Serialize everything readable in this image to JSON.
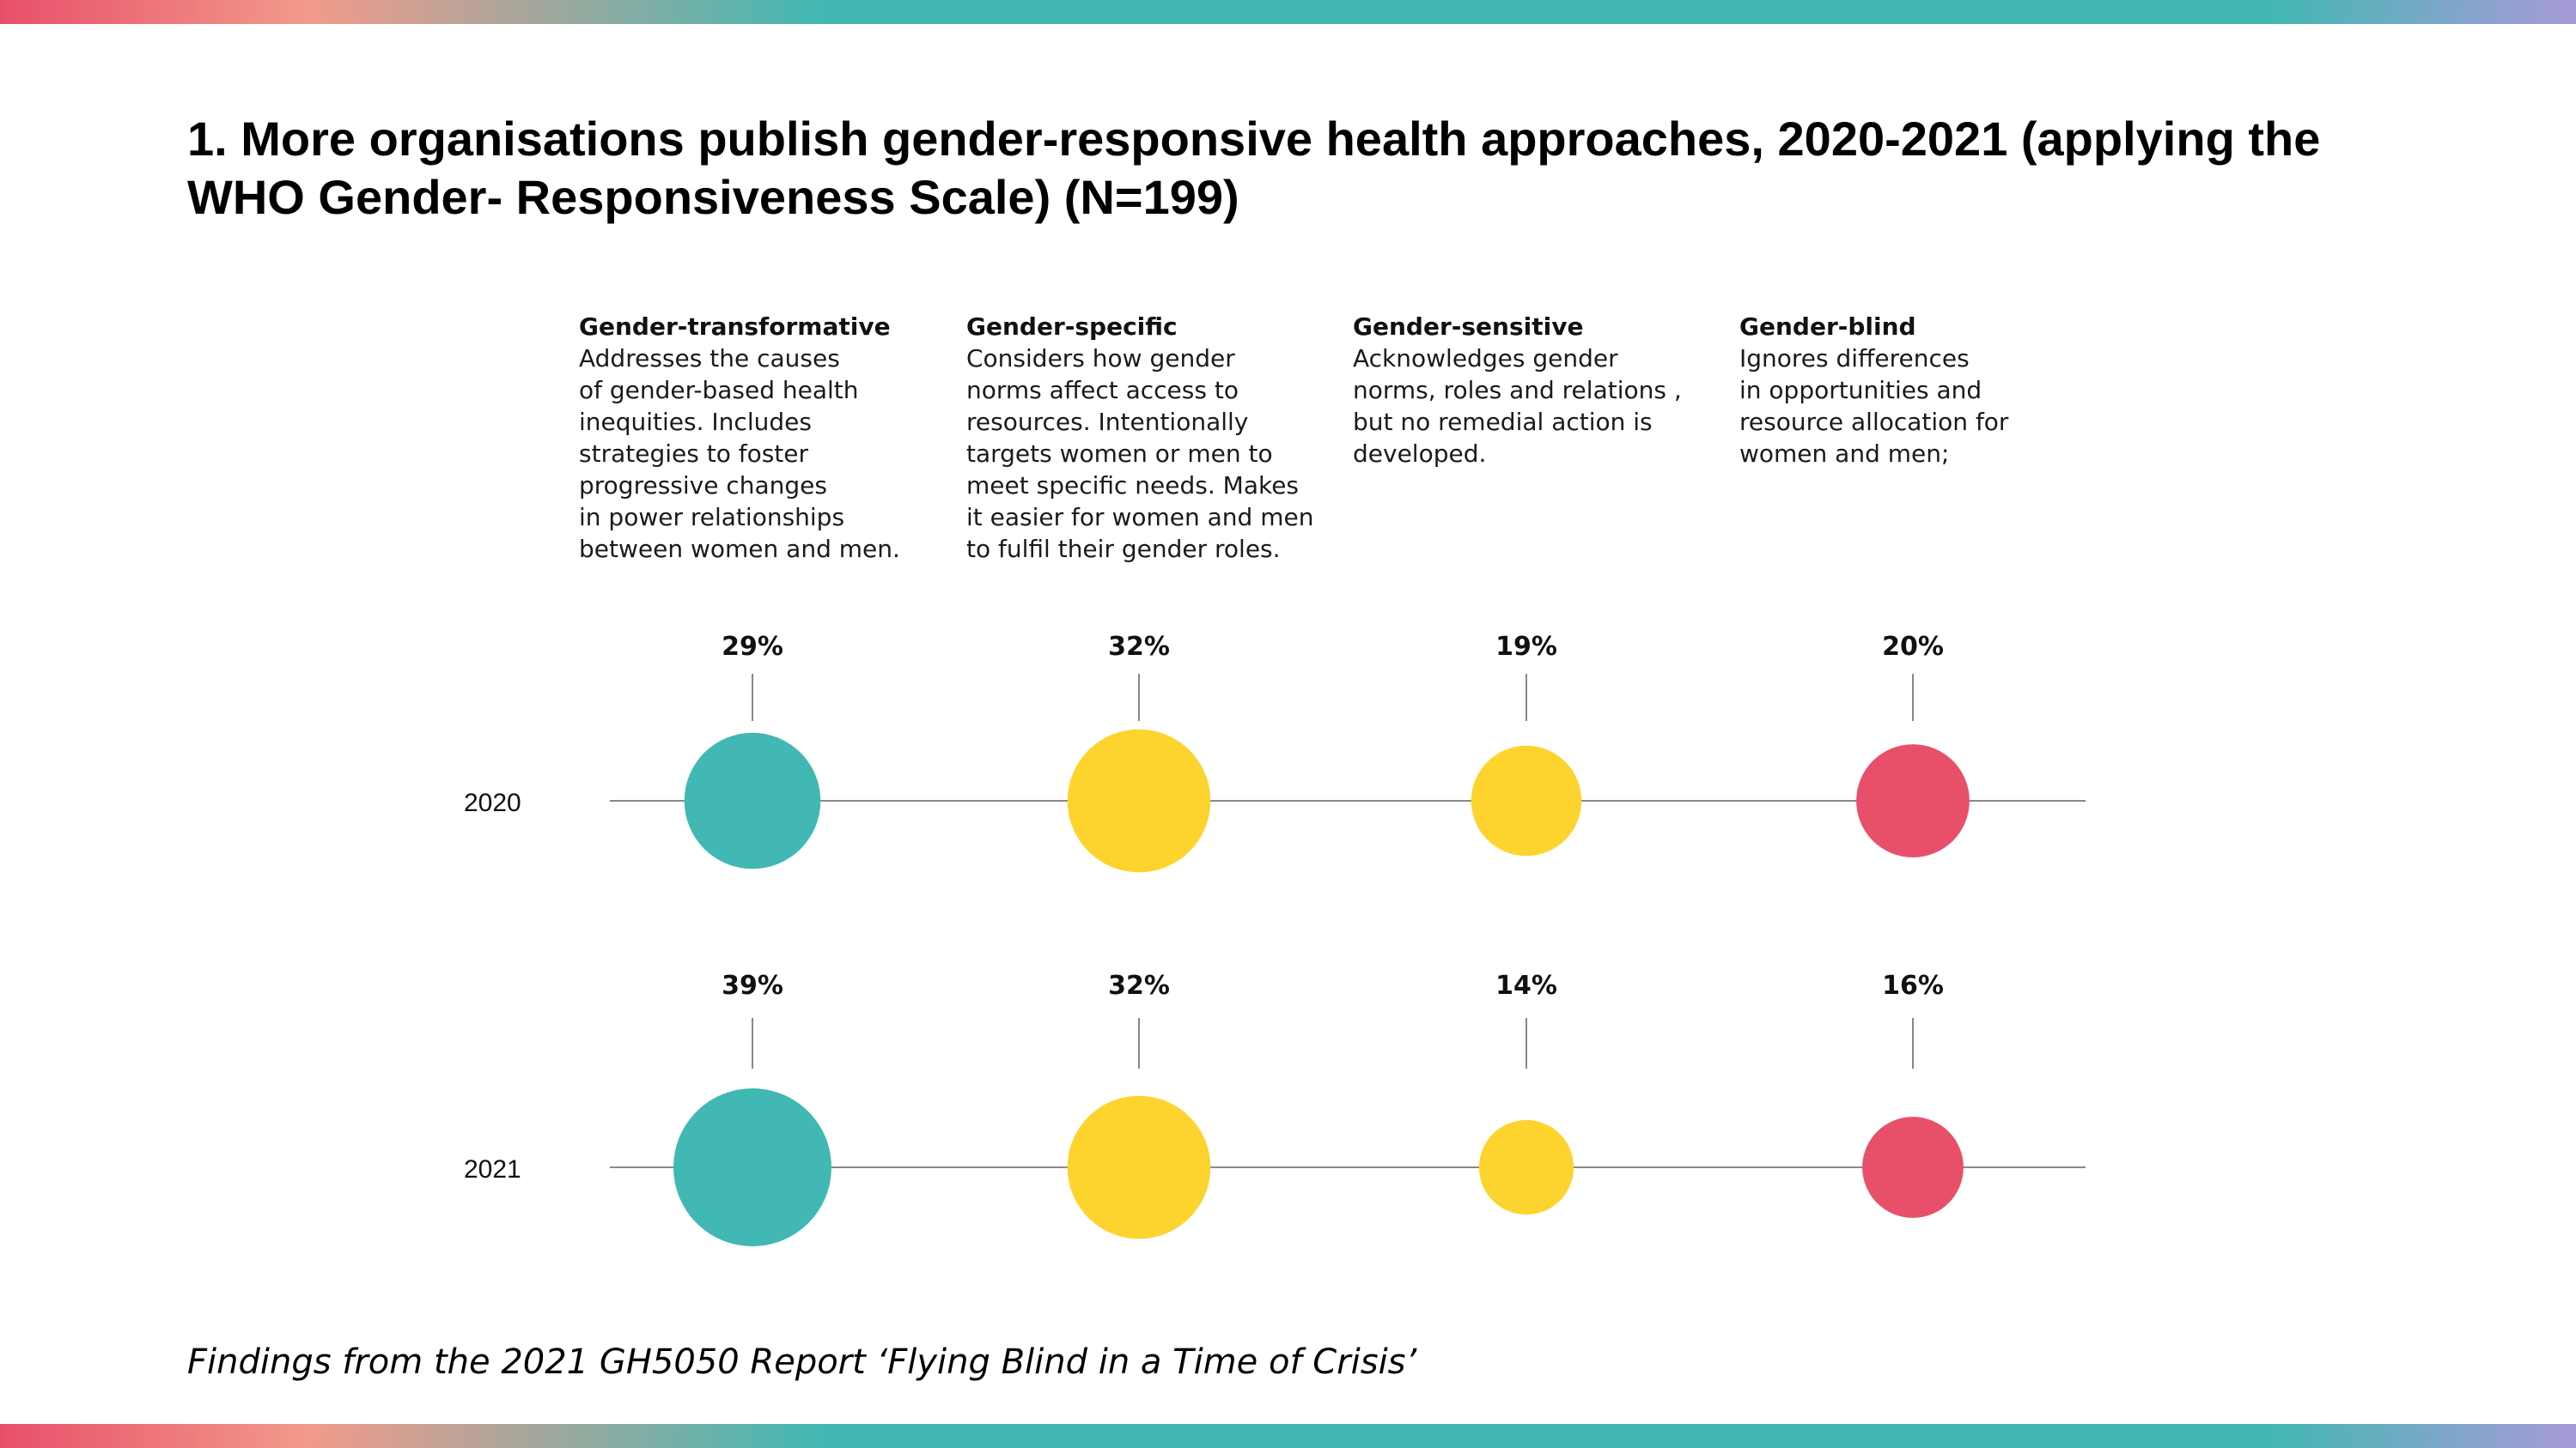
{
  "title": "1. More organisations publish gender-responsive health approaches, 2020-2021 (applying the WHO Gender- Responsiveness Scale) (N=199)",
  "footer": "Findings from the 2021 GH5050 Report ‘Flying Blind in a Time of Crisis’",
  "colors": {
    "teal": "#41b8b3",
    "yellow": "#fdd42e",
    "red": "#e8506a",
    "axis_line": "#888888"
  },
  "categories": [
    {
      "name": "Gender-transformative",
      "description": "Addresses the causes\nof gender-based health\ninequities. Includes\nstrategies to foster\nprogressive changes\nin power relationships\nbetween women and men.",
      "color": "teal"
    },
    {
      "name": "Gender-specific",
      "description": "Considers how gender\nnorms affect access to\nresources. Intentionally\ntargets women or men to\nmeet specific needs. Makes\nit easier for women and men\nto fulfil their gender roles.",
      "color": "yellow"
    },
    {
      "name": "Gender-sensitive",
      "description": "Acknowledges gender\nnorms, roles and relations ,\nbut no remedial action is\ndeveloped.",
      "color": "yellow"
    },
    {
      "name": "Gender-blind",
      "description": "Ignores differences\nin opportunities and\nresource allocation for\nwomen and men;",
      "color": "red"
    }
  ],
  "chart_data": {
    "type": "bubble",
    "categories": [
      "Gender-transformative",
      "Gender-specific",
      "Gender-sensitive",
      "Gender-blind"
    ],
    "series": [
      {
        "name": "2020",
        "values": [
          29,
          32,
          19,
          20
        ],
        "labels": [
          "29%",
          "32%",
          "19%",
          "20%"
        ]
      },
      {
        "name": "2021",
        "values": [
          39,
          32,
          14,
          16
        ],
        "labels": [
          "39%",
          "32%",
          "14%",
          "16%"
        ]
      }
    ],
    "unit": "%"
  }
}
